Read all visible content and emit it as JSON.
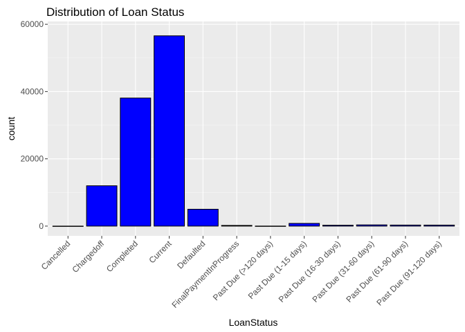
{
  "chart_data": {
    "type": "bar",
    "title": "Distribution of Loan Status",
    "xlabel": "LoanStatus",
    "ylabel": "count",
    "ylim": [
      -2900,
      60850
    ],
    "yticks": [
      0,
      20000,
      40000,
      60000
    ],
    "yminor": [
      10000,
      30000,
      50000
    ],
    "grid": true,
    "categories": [
      "Cancelled",
      "Chargedoff",
      "Completed",
      "Current",
      "Defaulted",
      "FinalPaymentInProgress",
      "Past Due (>120 days)",
      "Past Due (1-15 days)",
      "Past Due (16-30 days)",
      "Past Due (31-60 days)",
      "Past Due (61-90 days)",
      "Past Due (91-120 days)"
    ],
    "values": [
      5,
      11992,
      38074,
      56576,
      5018,
      205,
      16,
      806,
      265,
      363,
      313,
      304
    ],
    "bar_fill": "#0000ff",
    "bar_stroke": "#000000"
  }
}
